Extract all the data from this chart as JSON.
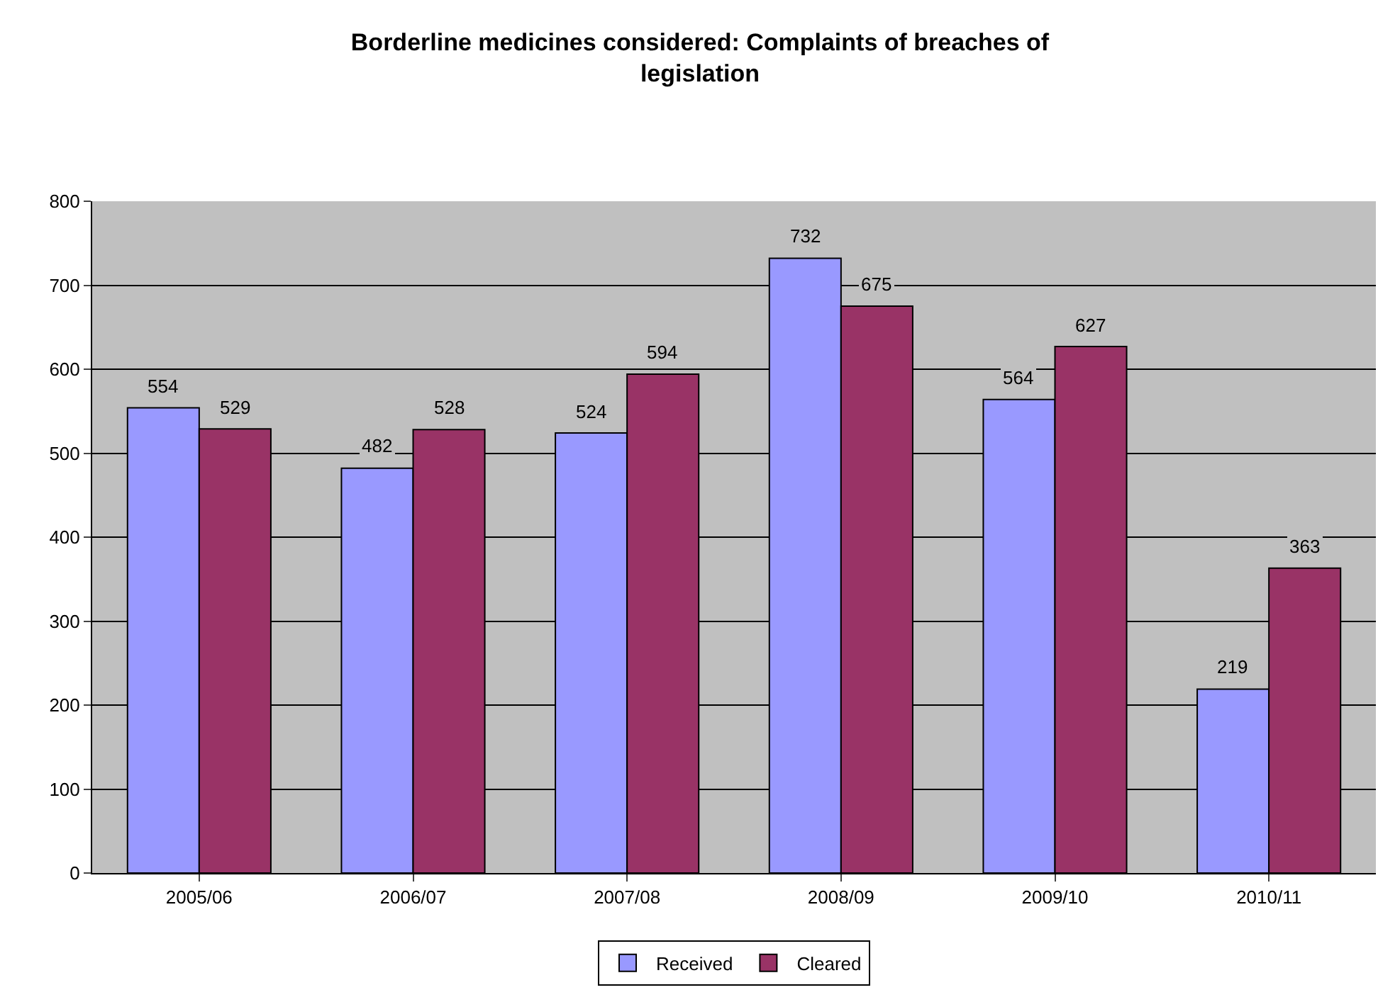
{
  "chart_data": {
    "type": "bar",
    "title": "Borderline medicines considered: Complaints of breaches of legislation",
    "categories": [
      "2005/06",
      "2006/07",
      "2007/08",
      "2008/09",
      "2009/10",
      "2010/11"
    ],
    "series": [
      {
        "name": "Received",
        "color": "#9999ff",
        "values": [
          554,
          482,
          524,
          732,
          564,
          219
        ]
      },
      {
        "name": "Cleared",
        "color": "#993366",
        "values": [
          529,
          528,
          594,
          675,
          627,
          363
        ]
      }
    ],
    "ylim": [
      0,
      800
    ],
    "yticks": [
      0,
      100,
      200,
      300,
      400,
      500,
      600,
      700,
      800
    ],
    "grid": "y",
    "legend": "bottom",
    "data_labels": true
  }
}
